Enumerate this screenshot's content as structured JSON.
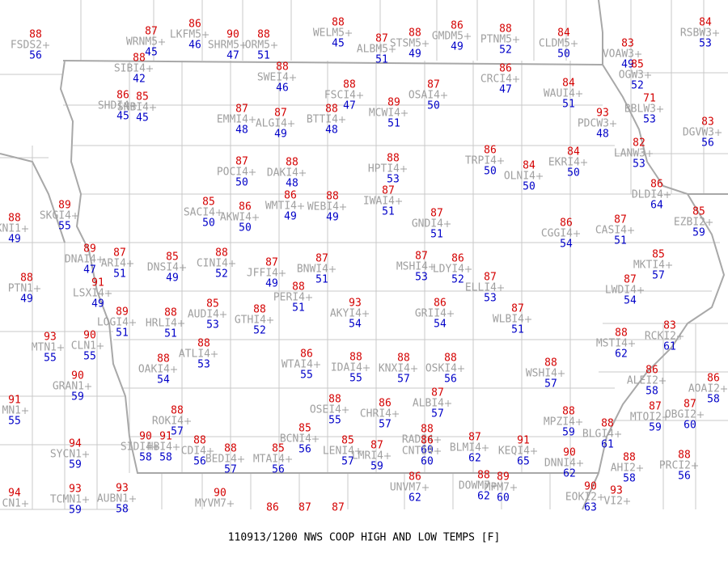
{
  "title": "110913/1200 NWS COOP HIGH AND LOW TEMPS [F]",
  "stations": [
    {
      "id": "FSDS2",
      "high": 88,
      "low": 56
    },
    {
      "id": "WRNM5",
      "high": 87,
      "low": 45
    },
    {
      "id": "LKFM5",
      "high": 86,
      "low": 46
    },
    {
      "id": "SHRM5",
      "high": 90,
      "low": 47
    },
    {
      "id": "ORM5",
      "high": 88,
      "low": 51
    },
    {
      "id": "WELM5",
      "high": 88,
      "low": 45
    },
    {
      "id": "ALBM5",
      "high": 87,
      "low": 51
    },
    {
      "id": "STSM5",
      "high": 88,
      "low": 49
    },
    {
      "id": "GMDM5",
      "high": 86,
      "low": 49
    },
    {
      "id": "PTNM5",
      "high": 88,
      "low": 52
    },
    {
      "id": "CLDM5",
      "high": 84,
      "low": 50
    },
    {
      "id": "VOAW3",
      "high": 83,
      "low": 49
    },
    {
      "id": "OGW3",
      "high": 85,
      "low": 52
    },
    {
      "id": "RSBW3",
      "high": 84,
      "low": 53
    },
    {
      "id": "SIBI4",
      "high": 88,
      "low": 42
    },
    {
      "id": "SWEI4",
      "high": 88,
      "low": 46
    },
    {
      "id": "FSCI4",
      "high": 88,
      "low": 47
    },
    {
      "id": "OSAI4",
      "high": 87,
      "low": 50
    },
    {
      "id": "CRCI4",
      "high": 86,
      "low": 47
    },
    {
      "id": "WAUI4",
      "high": 84,
      "low": 51
    },
    {
      "id": "BBLW3",
      "high": 71,
      "low": 53
    },
    {
      "id": "SHDI4",
      "high": 86,
      "low": 45
    },
    {
      "id": "SNBI4",
      "high": 85,
      "low": 45
    },
    {
      "id": "EMMI4",
      "high": 87,
      "low": 48
    },
    {
      "id": "ALGI4",
      "high": 87,
      "low": 49
    },
    {
      "id": "BTTI4",
      "high": 88,
      "low": 48
    },
    {
      "id": "MCWI4",
      "high": 89,
      "low": 51
    },
    {
      "id": "PDCW3",
      "high": 93,
      "low": 48
    },
    {
      "id": "DGVW3",
      "high": 83,
      "low": 56
    },
    {
      "id": "LANW3",
      "high": 82,
      "low": 53
    },
    {
      "id": "POCI4",
      "high": 87,
      "low": 50
    },
    {
      "id": "DAKI4",
      "high": 88,
      "low": 48
    },
    {
      "id": "HPTI4",
      "high": 88,
      "low": 53
    },
    {
      "id": "TRPI4",
      "high": 86,
      "low": 50
    },
    {
      "id": "OLNI4",
      "high": 84,
      "low": 50
    },
    {
      "id": "EKRI4",
      "high": 84,
      "low": 50
    },
    {
      "id": "DLDI4",
      "high": 86,
      "low": 64
    },
    {
      "id": "SKGI4",
      "high": 89,
      "low": 55
    },
    {
      "id": "SACI4",
      "high": 85,
      "low": 50
    },
    {
      "id": "AKWI4",
      "high": 86,
      "low": 50
    },
    {
      "id": "WMTI4",
      "high": 86,
      "low": 49
    },
    {
      "id": "WEBI4",
      "high": 88,
      "low": 49
    },
    {
      "id": "IWAI4",
      "high": 87,
      "low": 51
    },
    {
      "id": "GNDI4",
      "high": 87,
      "low": 51
    },
    {
      "id": "CGGI4",
      "high": 86,
      "low": 54
    },
    {
      "id": "CASI4",
      "high": 87,
      "low": 51
    },
    {
      "id": "EZBI2",
      "high": 85,
      "low": 59
    },
    {
      "id": "KNI1",
      "high": 88,
      "low": 49
    },
    {
      "id": "DNAI4",
      "high": 89,
      "low": 47
    },
    {
      "id": "ARI4",
      "high": 87,
      "low": 51
    },
    {
      "id": "DNSI4",
      "high": 85,
      "low": 49
    },
    {
      "id": "CINI4",
      "high": 88,
      "low": 52
    },
    {
      "id": "JFFI4",
      "high": 87,
      "low": 49
    },
    {
      "id": "BNWI4",
      "high": 87,
      "low": 51
    },
    {
      "id": "MSHI4",
      "high": 87,
      "low": 53
    },
    {
      "id": "LDYI4",
      "high": 86,
      "low": 52
    },
    {
      "id": "ELLI4",
      "high": 87,
      "low": 53
    },
    {
      "id": "MKTI4",
      "high": 85,
      "low": 57
    },
    {
      "id": "LWDI4",
      "high": 87,
      "low": 54
    },
    {
      "id": "PTN1",
      "high": 88,
      "low": 49
    },
    {
      "id": "LSXI4",
      "high": 91,
      "low": 49
    },
    {
      "id": "PERI4",
      "high": 88,
      "low": 51
    },
    {
      "id": "AKYI4",
      "high": 93,
      "low": 54
    },
    {
      "id": "GRII4",
      "high": 86,
      "low": 54
    },
    {
      "id": "WLBI4",
      "high": 87,
      "low": 51
    },
    {
      "id": "LOGI4",
      "high": 89,
      "low": 51
    },
    {
      "id": "HRLI4",
      "high": 88,
      "low": 51
    },
    {
      "id": "AUDI4",
      "high": 85,
      "low": 53
    },
    {
      "id": "GTHI4",
      "high": 88,
      "low": 52
    },
    {
      "id": "MSTI4",
      "high": 88,
      "low": 62
    },
    {
      "id": "RCKI2",
      "high": 83,
      "low": 61
    },
    {
      "id": "MTN1",
      "high": 93,
      "low": 55
    },
    {
      "id": "CLN1",
      "high": 90,
      "low": 55
    },
    {
      "id": "ATLI4",
      "high": 88,
      "low": 53
    },
    {
      "id": "OAKI4",
      "high": 88,
      "low": 54
    },
    {
      "id": "WTAI4",
      "high": 86,
      "low": 55
    },
    {
      "id": "IDAI4",
      "high": 88,
      "low": 55
    },
    {
      "id": "KNXI4",
      "high": 88,
      "low": 57
    },
    {
      "id": "OSKI4",
      "high": 88,
      "low": 56
    },
    {
      "id": "WSHI4",
      "high": 88,
      "low": 57
    },
    {
      "id": "ALEI2",
      "high": 86,
      "low": 58
    },
    {
      "id": "AOAI2",
      "high": 86,
      "low": 58
    },
    {
      "id": "GRAN1",
      "high": 90,
      "low": 59
    },
    {
      "id": "MN1",
      "high": 91,
      "low": 55
    },
    {
      "id": "ROKI4",
      "high": 88,
      "low": 57
    },
    {
      "id": "OSEI4",
      "high": 88,
      "low": 55
    },
    {
      "id": "CHRI4",
      "high": 86,
      "low": 57
    },
    {
      "id": "ALBI4",
      "high": 87,
      "low": 57
    },
    {
      "id": "MPZI4",
      "high": 88,
      "low": 59
    },
    {
      "id": "BLGI4",
      "high": 88,
      "low": 61
    },
    {
      "id": "MTOI2",
      "high": 87,
      "low": 59
    },
    {
      "id": "OBGI2",
      "high": 87,
      "low": 60
    },
    {
      "id": "SYCN1",
      "high": 94,
      "low": 59
    },
    {
      "id": "SIDI4",
      "high": 90,
      "low": 58
    },
    {
      "id": "HBI4",
      "high": 91,
      "low": 58
    },
    {
      "id": "CDI4",
      "high": 88,
      "low": 56
    },
    {
      "id": "BEDI4",
      "high": 88,
      "low": 57
    },
    {
      "id": "MTAI4",
      "high": 85,
      "low": 56
    },
    {
      "id": "BCNI4",
      "high": 85,
      "low": 56
    },
    {
      "id": "LENI4",
      "high": 85,
      "low": 57
    },
    {
      "id": "LMRI4",
      "high": 87,
      "low": 59
    },
    {
      "id": "RADI4",
      "high": 88,
      "low": 60
    },
    {
      "id": "CNTI4",
      "high": 86,
      "low": 60
    },
    {
      "id": "BLMI4",
      "high": 87,
      "low": 62
    },
    {
      "id": "KEQI4",
      "high": 91,
      "low": 65
    },
    {
      "id": "DNNI4",
      "high": 90,
      "low": 62
    },
    {
      "id": "AHI2",
      "high": 88,
      "low": 58
    },
    {
      "id": "PRCI2",
      "high": 88,
      "low": 56
    },
    {
      "id": "UNVM7",
      "high": 86,
      "low": 62
    },
    {
      "id": "DOWM7",
      "high": 88,
      "low": 62
    },
    {
      "id": "MPM7",
      "high": 89,
      "low": 60
    },
    {
      "id": "EOKI2",
      "high": 90,
      "low": 63
    },
    {
      "id": "VI2",
      "high": 93
    },
    {
      "id": "CN1",
      "high": 94
    },
    {
      "id": "TCMN1",
      "high": 93,
      "low": 59
    },
    {
      "id": "AUBN1",
      "high": 93,
      "low": 58
    },
    {
      "id": "MYVM7",
      "high": 90
    },
    {
      "high": 86
    },
    {
      "high": 87
    },
    {
      "high": 87
    }
  ]
}
